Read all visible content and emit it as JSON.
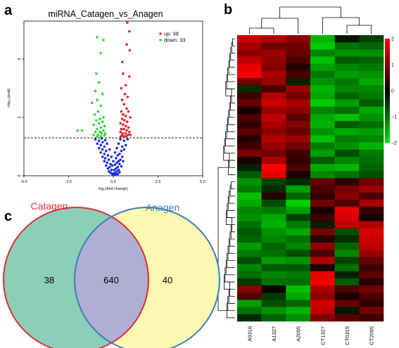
{
  "panels": {
    "a": "a",
    "b": "b",
    "c": "c"
  },
  "chart_data": [
    {
      "type": "scatter",
      "title": "miRNA_Catagen_vs_Anagen",
      "xlabel": "log₂(fold change)",
      "ylabel": "−log₁₀(pval)",
      "xlim": [
        -5,
        5
      ],
      "ylim": [
        0,
        5.3
      ],
      "xticks": [
        "-5.0",
        "-2.5",
        "0.0",
        "2.5",
        "5.0"
      ],
      "yticks": [
        "0",
        "2",
        "4"
      ],
      "threshold_y": 1.3,
      "legend": {
        "position": "top-right",
        "entries": [
          "up: 39",
          "down: 33"
        ]
      },
      "colors": {
        "up": "#e8262b",
        "down": "#33d633",
        "nonsig": "#1f2fd6"
      },
      "series": [
        {
          "name": "up: 39",
          "points": [
            [
              0.78,
              5.25
            ],
            [
              0.9,
              4.95
            ],
            [
              0.75,
              4.5
            ],
            [
              0.92,
              4.3
            ],
            [
              0.5,
              3.9
            ],
            [
              0.55,
              3.5
            ],
            [
              0.9,
              3.4
            ],
            [
              0.7,
              3.1
            ],
            [
              0.45,
              3.0
            ],
            [
              0.65,
              2.8
            ],
            [
              0.8,
              2.7
            ],
            [
              0.5,
              2.6
            ],
            [
              0.6,
              2.45
            ],
            [
              0.75,
              2.3
            ],
            [
              0.45,
              2.2
            ],
            [
              0.85,
              2.2
            ],
            [
              0.55,
              2.1
            ],
            [
              0.7,
              2.05
            ],
            [
              0.95,
              2.0
            ],
            [
              0.5,
              1.95
            ],
            [
              0.62,
              1.9
            ],
            [
              0.78,
              1.85
            ],
            [
              0.4,
              1.8
            ],
            [
              0.55,
              1.75
            ],
            [
              0.7,
              1.7
            ],
            [
              0.85,
              1.65
            ],
            [
              0.45,
              1.6
            ],
            [
              0.6,
              1.6
            ],
            [
              0.75,
              1.55
            ],
            [
              0.9,
              1.5
            ],
            [
              0.4,
              1.5
            ],
            [
              0.52,
              1.45
            ],
            [
              0.68,
              1.45
            ],
            [
              0.82,
              1.4
            ],
            [
              0.48,
              1.38
            ],
            [
              0.6,
              1.35
            ],
            [
              0.72,
              1.35
            ],
            [
              0.95,
              1.4
            ],
            [
              0.42,
              1.34
            ]
          ]
        },
        {
          "name": "down: 33",
          "points": [
            [
              -0.9,
              4.75
            ],
            [
              -0.55,
              4.65
            ],
            [
              -0.7,
              4.2
            ],
            [
              -0.95,
              3.5
            ],
            [
              -0.8,
              3.2
            ],
            [
              -1.0,
              2.9
            ],
            [
              -0.6,
              2.8
            ],
            [
              -0.9,
              2.6
            ],
            [
              -1.2,
              2.5
            ],
            [
              -0.7,
              2.4
            ],
            [
              -0.85,
              2.2
            ],
            [
              -1.05,
              2.1
            ],
            [
              -0.55,
              2.0
            ],
            [
              -0.75,
              1.95
            ],
            [
              -0.95,
              1.9
            ],
            [
              -0.6,
              1.85
            ],
            [
              -0.8,
              1.8
            ],
            [
              -1.1,
              1.75
            ],
            [
              -0.5,
              1.7
            ],
            [
              -0.7,
              1.65
            ],
            [
              -0.9,
              1.6
            ],
            [
              -0.55,
              1.55
            ],
            [
              -0.75,
              1.5
            ],
            [
              -1.0,
              1.5
            ],
            [
              -0.45,
              1.45
            ],
            [
              -0.65,
              1.45
            ],
            [
              -0.85,
              1.4
            ],
            [
              -1.1,
              1.4
            ],
            [
              -0.5,
              1.38
            ],
            [
              -0.7,
              1.35
            ],
            [
              -0.9,
              1.35
            ],
            [
              -2.0,
              1.55
            ],
            [
              -1.75,
              1.55
            ]
          ]
        },
        {
          "name": "",
          "points": [
            [
              0.4,
              1.25
            ],
            [
              0.3,
              1.1
            ],
            [
              0.5,
              1.0
            ],
            [
              0.2,
              0.95
            ],
            [
              0.45,
              0.85
            ],
            [
              0.6,
              0.9
            ],
            [
              0.35,
              0.75
            ],
            [
              0.25,
              0.7
            ],
            [
              0.5,
              0.65
            ],
            [
              0.15,
              0.6
            ],
            [
              0.4,
              0.55
            ],
            [
              0.3,
              0.5
            ],
            [
              0.55,
              0.5
            ],
            [
              0.2,
              0.45
            ],
            [
              0.35,
              0.4
            ],
            [
              0.1,
              0.38
            ],
            [
              0.25,
              0.3
            ],
            [
              0.45,
              0.32
            ],
            [
              0.15,
              0.25
            ],
            [
              0.3,
              0.2
            ],
            [
              0.05,
              0.2
            ],
            [
              0.2,
              0.15
            ],
            [
              0.1,
              0.1
            ],
            [
              0.35,
              0.12
            ],
            [
              0.0,
              0.08
            ],
            [
              0.15,
              0.05
            ],
            [
              0.25,
              0.06
            ],
            [
              0.05,
              0.03
            ],
            [
              -0.05,
              0.05
            ],
            [
              -0.15,
              0.1
            ],
            [
              -0.25,
              0.15
            ],
            [
              -0.1,
              0.2
            ],
            [
              -0.3,
              0.25
            ],
            [
              -0.2,
              0.3
            ],
            [
              -0.4,
              0.35
            ],
            [
              -0.15,
              0.4
            ],
            [
              -0.35,
              0.45
            ],
            [
              -0.5,
              0.5
            ],
            [
              -0.25,
              0.55
            ],
            [
              -0.45,
              0.6
            ],
            [
              -0.6,
              0.65
            ],
            [
              -0.3,
              0.7
            ],
            [
              -0.5,
              0.75
            ],
            [
              -0.7,
              0.8
            ],
            [
              -0.4,
              0.85
            ],
            [
              -0.6,
              0.9
            ],
            [
              -0.8,
              0.95
            ],
            [
              -0.5,
              1.0
            ],
            [
              -0.7,
              1.05
            ],
            [
              -0.9,
              1.1
            ],
            [
              -0.6,
              1.15
            ],
            [
              -0.8,
              1.2
            ],
            [
              -0.45,
              1.22
            ],
            [
              -0.65,
              1.28
            ],
            [
              -0.35,
              1.1
            ],
            [
              -0.2,
              0.9
            ],
            [
              0.6,
              1.2
            ],
            [
              0.7,
              1.05
            ],
            [
              -1.0,
              1.25
            ],
            [
              0.8,
              1.25
            ],
            [
              -0.05,
              0.35
            ],
            [
              0.0,
              0.5
            ],
            [
              -0.1,
              0.65
            ],
            [
              0.1,
              0.8
            ]
          ]
        }
      ]
    },
    {
      "type": "heatmap",
      "columns": [
        "A0316",
        "A1327",
        "A2095",
        "CT1327",
        "CT0315",
        "CT2095"
      ],
      "scale": {
        "min": -2,
        "max": 2,
        "ticks": [
          "2",
          "1",
          "0",
          "−1",
          "−2"
        ],
        "colors": {
          "low": "#00e000",
          "mid": "#000000",
          "high": "#ff0000"
        }
      },
      "rows": [
        [
          1.6,
          1.4,
          1.1,
          -1.6,
          -0.2,
          -0.6
        ],
        [
          1.3,
          0.9,
          0.9,
          -1.8,
          -1.0,
          -0.9
        ],
        [
          1.1,
          1.2,
          0.8,
          -1.2,
          -1.3,
          -1.3
        ],
        [
          1.5,
          1.1,
          0.6,
          -1.7,
          -0.8,
          -0.9
        ],
        [
          1.8,
          1.0,
          0.3,
          -1.4,
          -1.2,
          -1.1
        ],
        [
          1.9,
          1.3,
          0.6,
          -1.1,
          -1.4,
          -1.3
        ],
        [
          0.9,
          1.2,
          -0.3,
          -1.3,
          -1.1,
          -1.5
        ],
        [
          -0.4,
          0.6,
          1.2,
          -1.6,
          -1.2,
          -1.2
        ],
        [
          0.5,
          1.4,
          0.9,
          -1.5,
          -0.9,
          -1.1
        ],
        [
          0.8,
          1.6,
          1.3,
          -1.8,
          -1.4,
          -0.8
        ],
        [
          0.2,
          1.2,
          1.1,
          -1.2,
          -1.0,
          -1.5
        ],
        [
          0.6,
          1.5,
          0.7,
          -1.5,
          -1.7,
          -1.3
        ],
        [
          0.4,
          1.3,
          1.0,
          -1.6,
          -0.8,
          -1.0
        ],
        [
          0.7,
          1.1,
          0.8,
          -1.3,
          -1.5,
          -1.4
        ],
        [
          0.3,
          1.4,
          1.2,
          -1.7,
          -1.1,
          -1.2
        ],
        [
          0.5,
          1.2,
          0.9,
          -1.1,
          -1.3,
          -1.6
        ],
        [
          1.0,
          0.9,
          0.5,
          -1.4,
          -0.7,
          -1.1
        ],
        [
          0.2,
          1.3,
          0.4,
          -0.8,
          -1.2,
          -1.0
        ],
        [
          -0.3,
          2.0,
          0.6,
          -1.5,
          -1.6,
          -0.9
        ],
        [
          -0.8,
          1.8,
          0.2,
          -1.2,
          -1.0,
          -0.7
        ],
        [
          -1.3,
          -0.6,
          -0.4,
          0.8,
          0.4,
          0.9
        ],
        [
          -1.1,
          -0.4,
          -1.4,
          0.6,
          0.9,
          1.2
        ],
        [
          -1.7,
          0.3,
          -0.9,
          0.4,
          1.1,
          0.6
        ],
        [
          -1.5,
          -0.7,
          -1.8,
          0.9,
          0.6,
          1.3
        ],
        [
          -1.2,
          -1.1,
          -1.4,
          0.2,
          1.8,
          0.4
        ],
        [
          -1.3,
          -1.5,
          -0.6,
          0.5,
          1.7,
          0.2
        ],
        [
          -1.0,
          -1.6,
          -1.1,
          -0.3,
          1.5,
          1.4
        ],
        [
          -0.8,
          -1.3,
          -1.5,
          0.9,
          -0.7,
          1.7
        ],
        [
          -0.9,
          -1.2,
          -1.0,
          0.3,
          -0.4,
          1.6
        ],
        [
          -1.4,
          -0.9,
          -1.2,
          1.1,
          -0.9,
          1.5
        ],
        [
          -1.1,
          -1.0,
          -0.7,
          0.6,
          -1.2,
          1.2
        ],
        [
          -0.7,
          -1.4,
          -1.3,
          1.4,
          -0.6,
          0.8
        ],
        [
          -1.2,
          -0.8,
          -0.8,
          0.2,
          -1.0,
          0.5
        ],
        [
          -1.0,
          -1.2,
          -1.1,
          1.8,
          -0.3,
          0.7
        ],
        [
          -0.5,
          -1.0,
          -1.0,
          1.9,
          -0.8,
          0.3
        ],
        [
          1.1,
          0.1,
          -1.7,
          1.3,
          0.6,
          0.9
        ],
        [
          0.6,
          -0.5,
          -1.5,
          1.1,
          0.2,
          0.6
        ],
        [
          -1.4,
          -0.7,
          -0.9,
          1.6,
          0.8,
          0.4
        ],
        [
          -1.0,
          -1.3,
          -1.6,
          1.5,
          -0.2,
          0.9
        ],
        [
          -0.4,
          -0.9,
          -1.3,
          1.0,
          0.7,
          0.5
        ]
      ]
    },
    {
      "type": "venn",
      "sets": [
        {
          "name": "Catagen",
          "color": "#d8303a",
          "fill": "#8ccfb9"
        },
        {
          "name": "Anagen",
          "color": "#3d7fb6",
          "fill": "#fbf8b2"
        }
      ],
      "overlap_fill": "#b0aed3",
      "counts": {
        "only_first": "38",
        "both": "640",
        "only_second": "40"
      }
    }
  ]
}
